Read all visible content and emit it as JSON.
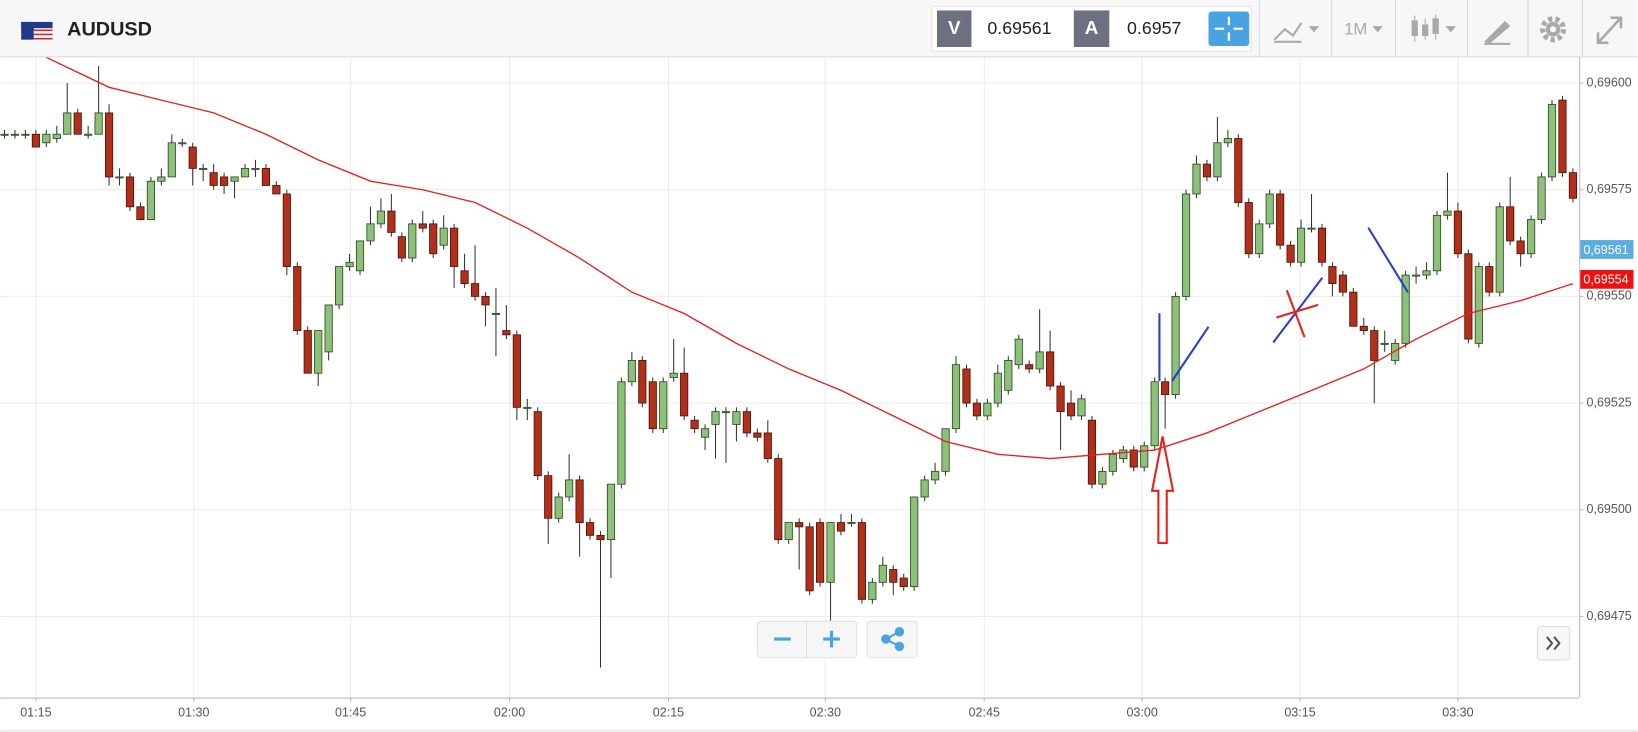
{
  "toolbar": {
    "symbol": "AUDUSD",
    "bid": {
      "label": "V",
      "value": 0.69561
    },
    "ask": {
      "label": "A",
      "value": 0.6957
    },
    "timeframe": "1M"
  },
  "chart_data": {
    "type": "candlestick",
    "up_color": "#8dc07a",
    "down_color": "#b1301b",
    "xlim": [
      -0.4,
      150.6
    ],
    "ylim": [
      0.69456,
      0.69606
    ],
    "xticks": [
      {
        "value": 3.0,
        "label": "01:15"
      },
      {
        "value": 18.1,
        "label": "01:30"
      },
      {
        "value": 33.1,
        "label": "01:45"
      },
      {
        "value": 48.3,
        "label": "02:00"
      },
      {
        "value": 63.5,
        "label": "02:15"
      },
      {
        "value": 78.5,
        "label": "02:30"
      },
      {
        "value": 93.7,
        "label": "02:45"
      },
      {
        "value": 108.8,
        "label": "03:00"
      },
      {
        "value": 123.9,
        "label": "03:15"
      },
      {
        "value": 139.0,
        "label": "03:30"
      }
    ],
    "yticks": [
      {
        "value": 0.69475,
        "label": "0,69475"
      },
      {
        "value": 0.695,
        "label": "0,69500"
      },
      {
        "value": 0.69525,
        "label": "0,69525"
      },
      {
        "value": 0.6955,
        "label": "0,69550"
      },
      {
        "value": 0.69575,
        "label": "0,69575"
      },
      {
        "value": 0.696,
        "label": "0,69600"
      }
    ],
    "grid": true,
    "price_labels": [
      {
        "value": 0.69561,
        "label": "0,69561",
        "color": "#5aaddf"
      },
      {
        "value": 0.69554,
        "label": "0,69554",
        "color": "#ee1111"
      }
    ],
    "ma": {
      "color": "#e8211c",
      "x": [
        4,
        10,
        15,
        20,
        25,
        30,
        35,
        40,
        45,
        50,
        55,
        60,
        65,
        70,
        75,
        80,
        85,
        90,
        95,
        100,
        105,
        110,
        115,
        120,
        125,
        130,
        135,
        140,
        145,
        150
      ],
      "values": [
        0.69606,
        0.69599,
        0.69596,
        0.69593,
        0.69588,
        0.69582,
        0.69577,
        0.69575,
        0.69572,
        0.69566,
        0.69559,
        0.69551,
        0.69546,
        0.69539,
        0.69533,
        0.69528,
        0.69522,
        0.69516,
        0.69513,
        0.69512,
        0.69513,
        0.69514,
        0.69518,
        0.69523,
        0.69528,
        0.69533,
        0.6954,
        0.69546,
        0.69549,
        0.69553
      ]
    },
    "candles": [
      [
        0.69588,
        0.69589,
        0.69587,
        0.69588
      ],
      [
        0.69588,
        0.69589,
        0.69587,
        0.69588
      ],
      [
        0.69588,
        0.69589,
        0.69587,
        0.69588
      ],
      [
        0.69588,
        0.69589,
        0.69585,
        0.69585
      ],
      [
        0.69586,
        0.69589,
        0.69585,
        0.69588
      ],
      [
        0.69587,
        0.6959,
        0.69586,
        0.69588
      ],
      [
        0.69588,
        0.696,
        0.69588,
        0.69593
      ],
      [
        0.69593,
        0.69594,
        0.69588,
        0.69588
      ],
      [
        0.69588,
        0.6959,
        0.69587,
        0.69588
      ],
      [
        0.69588,
        0.69604,
        0.69588,
        0.69593
      ],
      [
        0.69593,
        0.69595,
        0.69576,
        0.69578
      ],
      [
        0.69578,
        0.6958,
        0.69576,
        0.69578
      ],
      [
        0.69578,
        0.69579,
        0.6957,
        0.69571
      ],
      [
        0.69571,
        0.69572,
        0.69568,
        0.69568
      ],
      [
        0.69568,
        0.69578,
        0.69568,
        0.69577
      ],
      [
        0.69577,
        0.6958,
        0.69576,
        0.69578
      ],
      [
        0.69578,
        0.69588,
        0.69578,
        0.69586
      ],
      [
        0.69586,
        0.69587,
        0.69585,
        0.69586
      ],
      [
        0.69585,
        0.69586,
        0.69576,
        0.6958
      ],
      [
        0.6958,
        0.69581,
        0.69577,
        0.6958
      ],
      [
        0.69579,
        0.69581,
        0.69575,
        0.69576
      ],
      [
        0.69578,
        0.69579,
        0.69574,
        0.69576
      ],
      [
        0.69577,
        0.69578,
        0.69573,
        0.69578
      ],
      [
        0.69578,
        0.69581,
        0.69578,
        0.6958
      ],
      [
        0.6958,
        0.69582,
        0.69578,
        0.6958
      ],
      [
        0.6958,
        0.69581,
        0.69576,
        0.69576
      ],
      [
        0.69576,
        0.69577,
        0.69574,
        0.69574
      ],
      [
        0.69574,
        0.69575,
        0.69555,
        0.69557
      ],
      [
        0.69557,
        0.69558,
        0.69541,
        0.69542
      ],
      [
        0.69542,
        0.69543,
        0.69532,
        0.69532
      ],
      [
        0.69532,
        0.69542,
        0.69529,
        0.69542
      ],
      [
        0.69537,
        0.69548,
        0.69535,
        0.69548
      ],
      [
        0.69548,
        0.69557,
        0.69547,
        0.69557
      ],
      [
        0.69557,
        0.6956,
        0.69556,
        0.69558
      ],
      [
        0.69556,
        0.69563,
        0.69555,
        0.69563
      ],
      [
        0.69563,
        0.69571,
        0.69562,
        0.69567
      ],
      [
        0.69567,
        0.69573,
        0.69566,
        0.6957
      ],
      [
        0.6957,
        0.69574,
        0.69564,
        0.69565
      ],
      [
        0.69564,
        0.69565,
        0.69558,
        0.69559
      ],
      [
        0.69559,
        0.69568,
        0.69558,
        0.69567
      ],
      [
        0.69567,
        0.6957,
        0.69565,
        0.69566
      ],
      [
        0.69567,
        0.69568,
        0.69559,
        0.6956
      ],
      [
        0.69562,
        0.69569,
        0.69561,
        0.69566
      ],
      [
        0.69566,
        0.69567,
        0.69552,
        0.69557
      ],
      [
        0.69556,
        0.6956,
        0.69552,
        0.69553
      ],
      [
        0.69553,
        0.69562,
        0.69549,
        0.6955
      ],
      [
        0.6955,
        0.69551,
        0.69543,
        0.69548
      ],
      [
        0.69546,
        0.69552,
        0.69536,
        0.69546
      ],
      [
        0.69542,
        0.69548,
        0.6954,
        0.69541
      ],
      [
        0.69541,
        0.69542,
        0.69521,
        0.69524
      ],
      [
        0.69524,
        0.69526,
        0.69521,
        0.69524
      ],
      [
        0.69523,
        0.69524,
        0.69507,
        0.69508
      ],
      [
        0.69508,
        0.69509,
        0.69492,
        0.69498
      ],
      [
        0.69498,
        0.69504,
        0.69497,
        0.69503
      ],
      [
        0.69503,
        0.69513,
        0.69502,
        0.69507
      ],
      [
        0.69507,
        0.69508,
        0.69489,
        0.69497
      ],
      [
        0.69497,
        0.69498,
        0.69493,
        0.69494
      ],
      [
        0.69494,
        0.69495,
        0.69463,
        0.69493
      ],
      [
        0.69493,
        0.69506,
        0.69484,
        0.69506
      ],
      [
        0.69506,
        0.69531,
        0.69505,
        0.6953
      ],
      [
        0.6953,
        0.69537,
        0.69529,
        0.69535
      ],
      [
        0.69535,
        0.69536,
        0.69524,
        0.69525
      ],
      [
        0.6953,
        0.69531,
        0.69518,
        0.69519
      ],
      [
        0.69519,
        0.69531,
        0.69518,
        0.6953
      ],
      [
        0.69531,
        0.6954,
        0.6953,
        0.69532
      ],
      [
        0.69532,
        0.69538,
        0.69521,
        0.69522
      ],
      [
        0.69521,
        0.69522,
        0.69518,
        0.69519
      ],
      [
        0.69517,
        0.6952,
        0.69514,
        0.69519
      ],
      [
        0.6952,
        0.69524,
        0.69512,
        0.69523
      ],
      [
        0.69523,
        0.69524,
        0.69511,
        0.69523
      ],
      [
        0.6952,
        0.69524,
        0.69516,
        0.69523
      ],
      [
        0.69523,
        0.69524,
        0.69517,
        0.69518
      ],
      [
        0.69518,
        0.69519,
        0.69516,
        0.69517
      ],
      [
        0.69518,
        0.69521,
        0.69511,
        0.69512
      ],
      [
        0.69512,
        0.69513,
        0.69492,
        0.69493
      ],
      [
        0.69493,
        0.69497,
        0.69492,
        0.69497
      ],
      [
        0.69497,
        0.69498,
        0.69486,
        0.69496
      ],
      [
        0.69496,
        0.69497,
        0.6948,
        0.69481
      ],
      [
        0.69497,
        0.69498,
        0.69482,
        0.69483
      ],
      [
        0.69483,
        0.69497,
        0.69474,
        0.69497
      ],
      [
        0.69497,
        0.69499,
        0.69494,
        0.69495
      ],
      [
        0.69497,
        0.69499,
        0.69496,
        0.69497
      ],
      [
        0.69497,
        0.69498,
        0.69478,
        0.69479
      ],
      [
        0.69479,
        0.69484,
        0.69478,
        0.69483
      ],
      [
        0.69483,
        0.69489,
        0.69482,
        0.69487
      ],
      [
        0.69486,
        0.69487,
        0.6948,
        0.69483
      ],
      [
        0.69484,
        0.69485,
        0.69481,
        0.69482
      ],
      [
        0.69482,
        0.69503,
        0.69481,
        0.69503
      ],
      [
        0.69503,
        0.69508,
        0.69502,
        0.69507
      ],
      [
        0.69507,
        0.69511,
        0.69506,
        0.69509
      ],
      [
        0.69509,
        0.69519,
        0.69508,
        0.69519
      ],
      [
        0.69519,
        0.69536,
        0.69518,
        0.69534
      ],
      [
        0.69533,
        0.69534,
        0.69524,
        0.69525
      ],
      [
        0.69525,
        0.69526,
        0.69521,
        0.69522
      ],
      [
        0.69522,
        0.69526,
        0.69521,
        0.69525
      ],
      [
        0.69525,
        0.69534,
        0.69524,
        0.69532
      ],
      [
        0.69528,
        0.69536,
        0.69527,
        0.69535
      ],
      [
        0.69534,
        0.69541,
        0.69533,
        0.6954
      ],
      [
        0.69534,
        0.69535,
        0.69532,
        0.69533
      ],
      [
        0.69533,
        0.69547,
        0.69532,
        0.69537
      ],
      [
        0.69537,
        0.69542,
        0.69528,
        0.69529
      ],
      [
        0.69529,
        0.6953,
        0.69514,
        0.69523
      ],
      [
        0.69525,
        0.69528,
        0.69521,
        0.69522
      ],
      [
        0.69522,
        0.69527,
        0.69521,
        0.69526
      ],
      [
        0.69521,
        0.69522,
        0.69505,
        0.69506
      ],
      [
        0.69506,
        0.6951,
        0.69505,
        0.69509
      ],
      [
        0.69509,
        0.69514,
        0.69508,
        0.69513
      ],
      [
        0.69512,
        0.69515,
        0.69511,
        0.69514
      ],
      [
        0.69514,
        0.69515,
        0.69509,
        0.6951
      ],
      [
        0.6951,
        0.69516,
        0.69509,
        0.69515
      ],
      [
        0.69515,
        0.69531,
        0.69514,
        0.6953
      ],
      [
        0.6953,
        0.69531,
        0.69519,
        0.69527
      ],
      [
        0.69527,
        0.69551,
        0.69526,
        0.6955
      ],
      [
        0.6955,
        0.69575,
        0.69549,
        0.69574
      ],
      [
        0.69574,
        0.69583,
        0.69573,
        0.69581
      ],
      [
        0.69581,
        0.69582,
        0.69577,
        0.69578
      ],
      [
        0.69578,
        0.69592,
        0.69577,
        0.69586
      ],
      [
        0.69586,
        0.69589,
        0.69585,
        0.69587
      ],
      [
        0.69587,
        0.69588,
        0.69571,
        0.69572
      ],
      [
        0.69572,
        0.69573,
        0.69559,
        0.6956
      ],
      [
        0.6956,
        0.69568,
        0.69559,
        0.69567
      ],
      [
        0.69567,
        0.69575,
        0.69566,
        0.69574
      ],
      [
        0.69574,
        0.69575,
        0.69561,
        0.69562
      ],
      [
        0.69562,
        0.69563,
        0.69557,
        0.69558
      ],
      [
        0.69558,
        0.69568,
        0.69557,
        0.69566
      ],
      [
        0.69566,
        0.69574,
        0.69565,
        0.69566
      ],
      [
        0.69566,
        0.69567,
        0.69557,
        0.69558
      ],
      [
        0.69557,
        0.69558,
        0.6955,
        0.69553
      ],
      [
        0.69555,
        0.69556,
        0.6955,
        0.69551
      ],
      [
        0.69551,
        0.69552,
        0.69543,
        0.69543
      ],
      [
        0.69543,
        0.69545,
        0.69541,
        0.69542
      ],
      [
        0.69542,
        0.69543,
        0.69525,
        0.69535
      ],
      [
        0.69539,
        0.69542,
        0.69537,
        0.69539
      ],
      [
        0.69535,
        0.6954,
        0.69534,
        0.69539
      ],
      [
        0.69539,
        0.69556,
        0.69538,
        0.69555
      ],
      [
        0.69555,
        0.69557,
        0.69553,
        0.69555
      ],
      [
        0.69555,
        0.69558,
        0.69554,
        0.69556
      ],
      [
        0.69556,
        0.6957,
        0.69555,
        0.69569
      ],
      [
        0.69569,
        0.69579,
        0.69568,
        0.6957
      ],
      [
        0.6957,
        0.69572,
        0.69559,
        0.6956
      ],
      [
        0.6956,
        0.69561,
        0.69539,
        0.6954
      ],
      [
        0.69539,
        0.69558,
        0.69538,
        0.69557
      ],
      [
        0.69557,
        0.69558,
        0.6955,
        0.69551
      ],
      [
        0.69551,
        0.69572,
        0.6955,
        0.69571
      ],
      [
        0.69571,
        0.69578,
        0.69562,
        0.69563
      ],
      [
        0.69563,
        0.69564,
        0.69557,
        0.6956
      ],
      [
        0.6956,
        0.69569,
        0.69559,
        0.69568
      ],
      [
        0.69568,
        0.69579,
        0.69567,
        0.69578
      ],
      [
        0.69578,
        0.69596,
        0.69577,
        0.69595
      ],
      [
        0.69596,
        0.69597,
        0.69578,
        0.69579
      ],
      [
        0.69579,
        0.6958,
        0.69572,
        0.69573
      ]
    ]
  }
}
